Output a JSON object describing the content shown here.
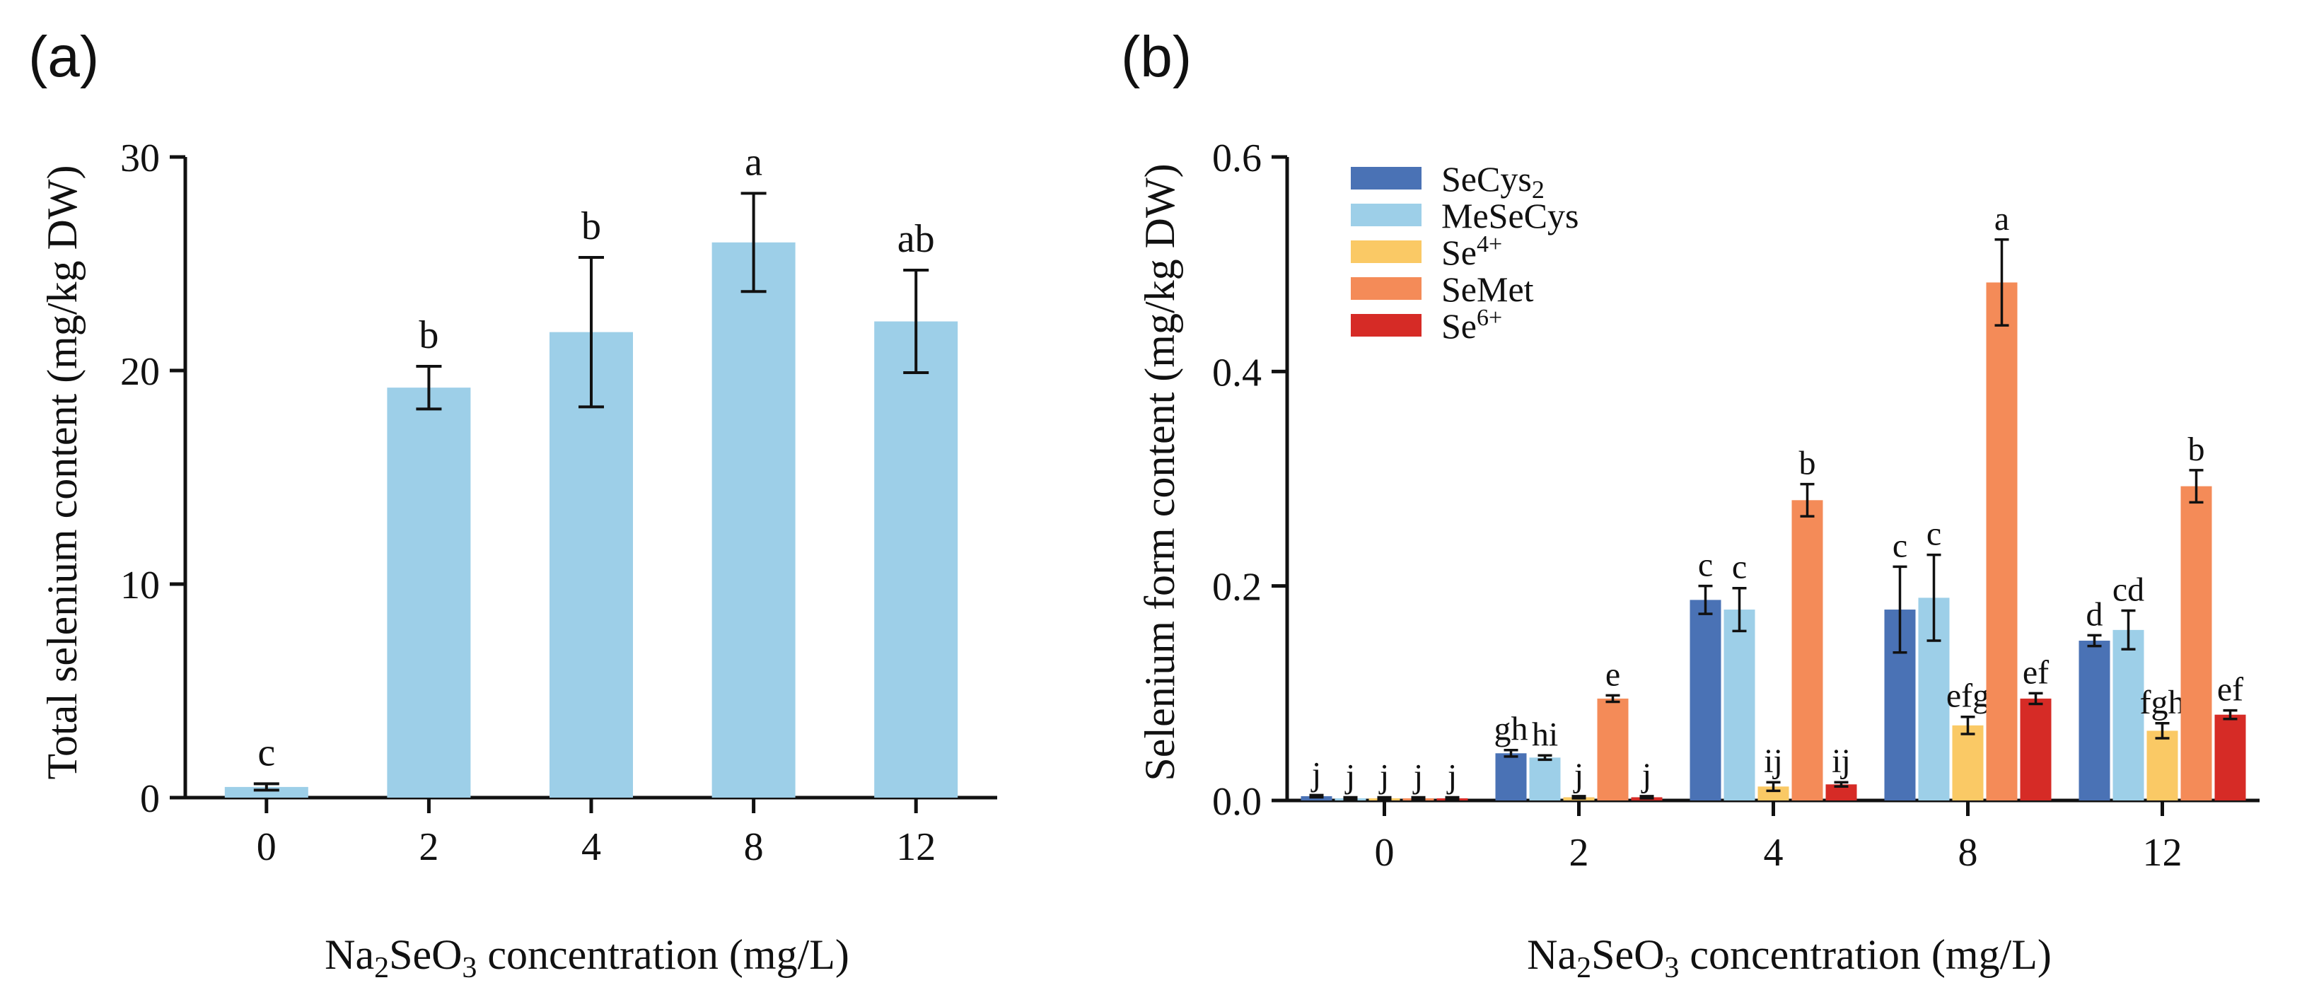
{
  "chart_data": [
    {
      "panel": "(a)",
      "type": "bar",
      "categories": [
        "0",
        "2",
        "4",
        "8",
        "12"
      ],
      "values": [
        0.5,
        19.2,
        21.8,
        26.0,
        22.3
      ],
      "errors": [
        0.15,
        1.0,
        3.5,
        2.3,
        2.4
      ],
      "letters": [
        "c",
        "b",
        "b",
        "a",
        "ab"
      ],
      "ylabel": "Total selenium content (mg/kg DW)",
      "xlabel_parts": [
        "Na",
        "2",
        "SeO",
        "3",
        " concentration (mg/L)"
      ],
      "ylim": [
        0,
        30
      ],
      "yticks": [
        "0",
        "10",
        "20",
        "30"
      ],
      "color": "#9dcfe8"
    },
    {
      "panel": "(b)",
      "type": "bar",
      "categories": [
        "0",
        "2",
        "4",
        "8",
        "12"
      ],
      "ylabel": "Selenium form content (mg/kg DW)",
      "xlabel_parts": [
        "Na",
        "2",
        "SeO",
        "3",
        " concentration (mg/L)"
      ],
      "ylim": [
        0,
        0.6
      ],
      "yticks": [
        "0.0",
        "0.2",
        "0.4",
        "0.6"
      ],
      "legend_position": "top-left",
      "series": [
        {
          "name_base": "SeCys",
          "name_sub": "2",
          "name_sup": "",
          "color": "#4a72b5",
          "values": [
            0.004,
            0.044,
            0.187,
            0.178,
            0.149
          ],
          "errors": [
            0.001,
            0.003,
            0.013,
            0.04,
            0.005
          ],
          "letters": [
            "j",
            "gh",
            "c",
            "c",
            "d"
          ]
        },
        {
          "name_base": "MeSeCys",
          "name_sub": "",
          "name_sup": "",
          "color": "#9dcfe8",
          "values": [
            0.002,
            0.04,
            0.178,
            0.189,
            0.159
          ],
          "errors": [
            0.001,
            0.002,
            0.02,
            0.04,
            0.018
          ],
          "letters": [
            "j",
            "hi",
            "c",
            "c",
            "cd"
          ]
        },
        {
          "name_base": "Se",
          "name_sub": "",
          "name_sup": "4+",
          "color": "#fac965",
          "values": [
            0.002,
            0.003,
            0.013,
            0.07,
            0.065
          ],
          "errors": [
            0.001,
            0.001,
            0.004,
            0.008,
            0.007
          ],
          "letters": [
            "j",
            "j",
            "ij",
            "efg",
            "fgh"
          ]
        },
        {
          "name_base": "SeMet",
          "name_sub": "",
          "name_sup": "",
          "color": "#f48b58",
          "values": [
            0.002,
            0.095,
            0.28,
            0.483,
            0.293
          ],
          "errors": [
            0.001,
            0.003,
            0.015,
            0.04,
            0.015
          ],
          "letters": [
            "j",
            "e",
            "b",
            "a",
            "b"
          ]
        },
        {
          "name_base": "Se",
          "name_sub": "",
          "name_sup": "6+",
          "color": "#d62b26",
          "values": [
            0.002,
            0.003,
            0.015,
            0.095,
            0.08
          ],
          "errors": [
            0.001,
            0.001,
            0.002,
            0.005,
            0.004
          ],
          "letters": [
            "j",
            "j",
            "ij",
            "ef",
            "ef"
          ]
        }
      ]
    }
  ]
}
